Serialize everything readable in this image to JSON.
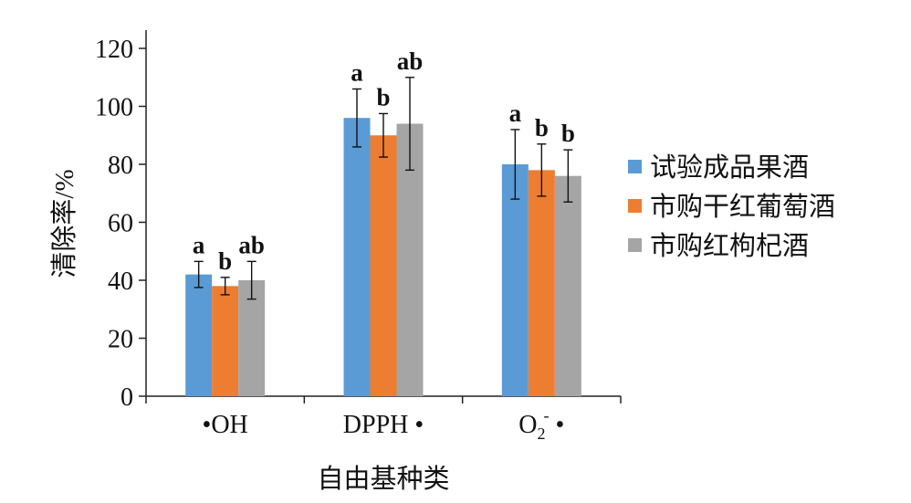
{
  "chart_data": {
    "type": "bar",
    "title": "",
    "xlabel": "自由基种类",
    "ylabel": "清除率/%",
    "ylim": [
      0,
      120
    ],
    "yticks": [
      0,
      20,
      40,
      60,
      80,
      100,
      120
    ],
    "grid": false,
    "legend_position": "right",
    "categories": [
      "•OH",
      "DPPH •",
      "O2- •"
    ],
    "categories_display": [
      {
        "main": "•OH"
      },
      {
        "main": "DPPH •"
      },
      {
        "base": "O",
        "sub": "2",
        "sup": "-",
        "tail": " •"
      }
    ],
    "series": [
      {
        "name": "试验成品果酒",
        "color": "#5B9BD5",
        "values": [
          42,
          96,
          80
        ],
        "error": [
          4.5,
          10,
          12
        ],
        "labels": [
          "a",
          "a",
          "a"
        ]
      },
      {
        "name": "市购干红葡萄酒",
        "color": "#ED7D31",
        "values": [
          38,
          90,
          78
        ],
        "error": [
          3,
          7.5,
          9
        ],
        "labels": [
          "b",
          "b",
          "b"
        ]
      },
      {
        "name": "市购红枸杞酒",
        "color": "#A5A5A5",
        "values": [
          40,
          94,
          76
        ],
        "error": [
          6.5,
          16,
          9
        ],
        "labels": [
          "ab",
          "ab",
          "b"
        ]
      }
    ]
  }
}
